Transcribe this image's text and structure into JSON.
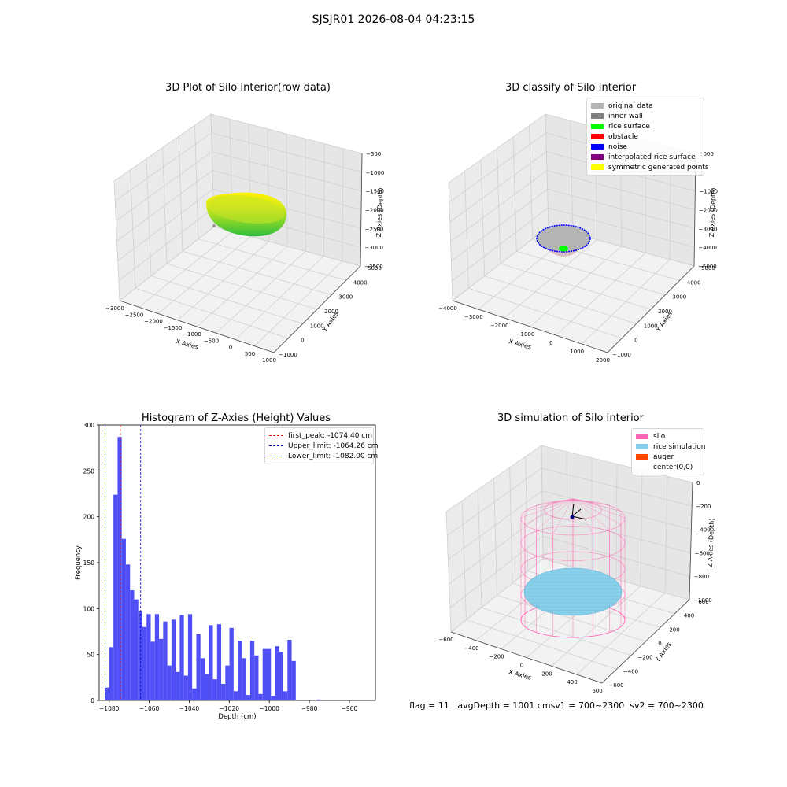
{
  "suptitle": "SJSJR01 2026-08-04 04:23:15",
  "footer": {
    "flag": "flag = 11",
    "avg": "avgDepth = 1001 cm",
    "sv1": "sv1 = 700~2300",
    "sv2": "sv2 = 700~2300"
  },
  "chart_data": [
    {
      "type": "scatter",
      "projection": "3d",
      "title": "3D Plot of Silo Interior(row data)",
      "xlabel": "X Axies",
      "ylabel": "Y Axies",
      "zlabel": "Z Axies (Depth)",
      "x_ticks": [
        -3000,
        -2500,
        -2000,
        -1500,
        -1000,
        -500,
        0,
        500,
        1000
      ],
      "y_ticks": [
        -1000,
        0,
        1000,
        2000,
        3000,
        4000,
        5000
      ],
      "z_ticks": [
        -3500,
        -3000,
        -2500,
        -2000,
        -1500,
        -1000,
        -500
      ],
      "colormap": [
        "#2fbf3f",
        "#7fd42a",
        "#d7e81a",
        "#fff200"
      ]
    },
    {
      "type": "scatter",
      "projection": "3d",
      "title": "3D classify of Silo Interior",
      "xlabel": "X Axies",
      "ylabel": "Y Axies",
      "zlabel": "Z Axies (Depth)",
      "x_ticks": [
        -4000,
        -3000,
        -2000,
        -1000,
        0,
        1000,
        2000
      ],
      "y_ticks": [
        -1000,
        0,
        1000,
        2000,
        3000,
        4000,
        5000
      ],
      "z_ticks": [
        -5000,
        -4000,
        -3000,
        -2000,
        -1000,
        0,
        1000
      ],
      "legend": [
        {
          "label": "original data",
          "color": "#b4b4b4"
        },
        {
          "label": "inner wall",
          "color": "#808080"
        },
        {
          "label": "rice surface",
          "color": "#00ff00"
        },
        {
          "label": "obstacle",
          "color": "#ff0000"
        },
        {
          "label": "noise",
          "color": "#0000ff"
        },
        {
          "label": "interpolated rice surface",
          "color": "#800080"
        },
        {
          "label": "symmetric generated points",
          "color": "#ffff00"
        }
      ]
    },
    {
      "type": "bar",
      "title": "Histogram of Z-Axies (Height) Values",
      "xlabel": "Depth (cm)",
      "ylabel": "Frequency",
      "xlim": [
        -1085,
        -947
      ],
      "ylim": [
        0,
        300
      ],
      "x_ticks": [
        -1080,
        -1060,
        -1040,
        -1020,
        -1000,
        -980,
        -960
      ],
      "y_ticks": [
        0,
        50,
        100,
        150,
        200,
        250,
        300
      ],
      "bar_color": "#4f4ff5",
      "bin_width": 2.07,
      "bin_start": -1082,
      "values": [
        14,
        58,
        224,
        287,
        176,
        148,
        120,
        110,
        97,
        80,
        94,
        64,
        94,
        67,
        86,
        38,
        88,
        31,
        93,
        27,
        94,
        13,
        72,
        46,
        29,
        82,
        23,
        83,
        18,
        38,
        79,
        10,
        65,
        46,
        6,
        65,
        49,
        7,
        56,
        56,
        5,
        59,
        53,
        10,
        66,
        43,
        0,
        0,
        0,
        0,
        0,
        1
      ],
      "lines": [
        {
          "label": "first_peak: -1074.40 cm",
          "x": -1074.4,
          "color": "#ff0000"
        },
        {
          "label": "Upper_limit: -1064.26 cm",
          "x": -1064.26,
          "color": "#0000cc"
        },
        {
          "label": "Lower_limit: -1082.00 cm",
          "x": -1082.0,
          "color": "#0000ff"
        }
      ],
      "legend_position": "top-right"
    },
    {
      "type": "scatter",
      "projection": "3d",
      "title": "3D simulation of Silo Interior",
      "xlabel": "X Axies",
      "ylabel": "Y Axies",
      "zlabel": "Z Axies (Depth)",
      "x_ticks": [
        -600,
        -400,
        -200,
        0,
        200,
        400,
        600
      ],
      "y_ticks": [
        -600,
        -400,
        -200,
        0,
        200,
        400,
        600
      ],
      "z_ticks": [
        -1000,
        -800,
        -600,
        -400,
        -200,
        0
      ],
      "legend": [
        {
          "label": "silo",
          "color": "#ff69b4"
        },
        {
          "label": "rice simulation",
          "color": "#87ceeb"
        },
        {
          "label": "auger",
          "color": "#ff4500"
        },
        {
          "label": "center(0,0)",
          "color": ""
        }
      ]
    }
  ]
}
